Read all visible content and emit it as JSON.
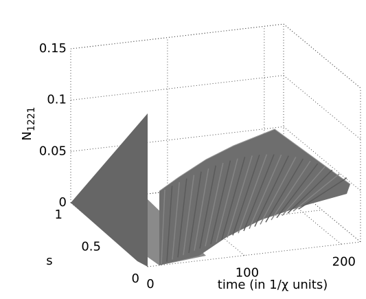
{
  "chart_data": {
    "type": "surface",
    "xlabel": "time (in 1/χ units)",
    "ylabel": "s",
    "zlabel": "N",
    "zlabel_subscript": "1221",
    "xlim": [
      0,
      220
    ],
    "xticks": [
      0,
      100,
      200
    ],
    "ylim": [
      0,
      1
    ],
    "yticks": [
      0,
      0.5,
      1
    ],
    "zlim": [
      0,
      0.15
    ],
    "zticks": [
      0,
      0.05,
      0.1,
      0.15
    ],
    "grid": true,
    "color": "#6e6e6e"
  }
}
